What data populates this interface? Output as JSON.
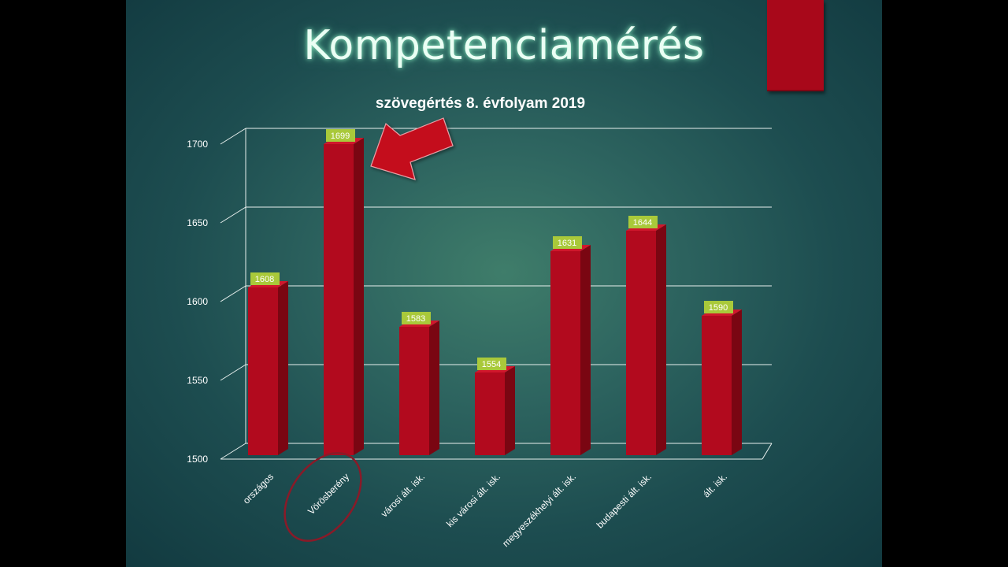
{
  "slide": {
    "title": "Kompetenciamérés"
  },
  "colors": {
    "bar_front": "#b20a1e",
    "bar_side": "#7a0612",
    "bar_top": "#d0172c",
    "label_bg": "#a9c93a",
    "arrow": "#c4091f",
    "highlight_ellipse": "#8a1a28"
  },
  "chart_data": {
    "type": "bar",
    "title": "szövegértés 8. évfolyam 2019",
    "categories": [
      "országos",
      "Vörösberény",
      "városi ált. isk.",
      "kis városi ált. isk.",
      "megyeszékhelyi ált. isk.",
      "budapesti ált. isk.",
      "ált. isk."
    ],
    "values": [
      1608,
      1699,
      1583,
      1554,
      1631,
      1644,
      1590
    ],
    "ylim": [
      1500,
      1700
    ],
    "yticks": [
      1500,
      1550,
      1600,
      1650,
      1700
    ],
    "grid": true,
    "three_d": true,
    "highlighted_category": "Vörösberény"
  }
}
